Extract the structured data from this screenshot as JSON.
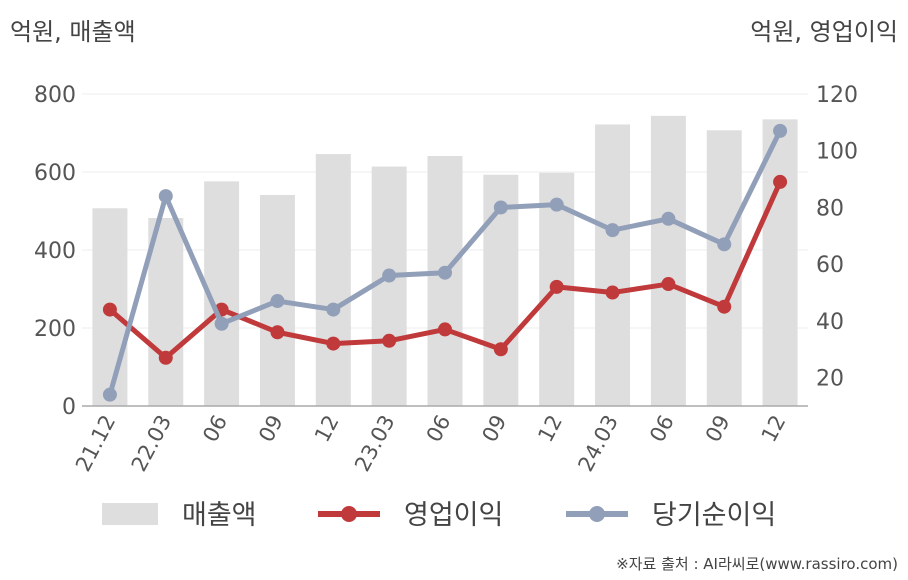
{
  "units": {
    "left": "억원, 매출액",
    "right": "억원, 영업이익"
  },
  "source": "※자료 출처 : AI라씨로(www.rassiro.com)",
  "colors": {
    "bar": "#dedede",
    "operating_profit": "#c0393b",
    "net_income": "#929fb9"
  },
  "chart_data": {
    "type": "bar",
    "categories": [
      "21.12",
      "22.03",
      "06",
      "09",
      "12",
      "23.03",
      "06",
      "09",
      "12",
      "24.03",
      "06",
      "09",
      "12"
    ],
    "y_left": {
      "ylim": [
        0,
        800
      ],
      "ticks": [
        0,
        200,
        400,
        600,
        800
      ]
    },
    "y_right": {
      "ylim": [
        10,
        120
      ],
      "ticks": [
        20,
        40,
        60,
        80,
        100,
        120
      ]
    },
    "grid": true,
    "legend_position": "bottom",
    "series": [
      {
        "name": "매출액",
        "type": "bar",
        "axis": "left",
        "values": [
          507,
          482,
          576,
          541,
          646,
          614,
          641,
          593,
          598,
          722,
          744,
          707,
          735
        ]
      },
      {
        "name": "영업이익",
        "type": "line",
        "axis": "right",
        "values": [
          44,
          27,
          44,
          36,
          32,
          33,
          37,
          30,
          52,
          50,
          53,
          45,
          89
        ]
      },
      {
        "name": "당기순이익",
        "type": "line",
        "axis": "right",
        "values": [
          14,
          84,
          39,
          47,
          44,
          56,
          57,
          80,
          81,
          72,
          76,
          67,
          107
        ]
      }
    ]
  }
}
